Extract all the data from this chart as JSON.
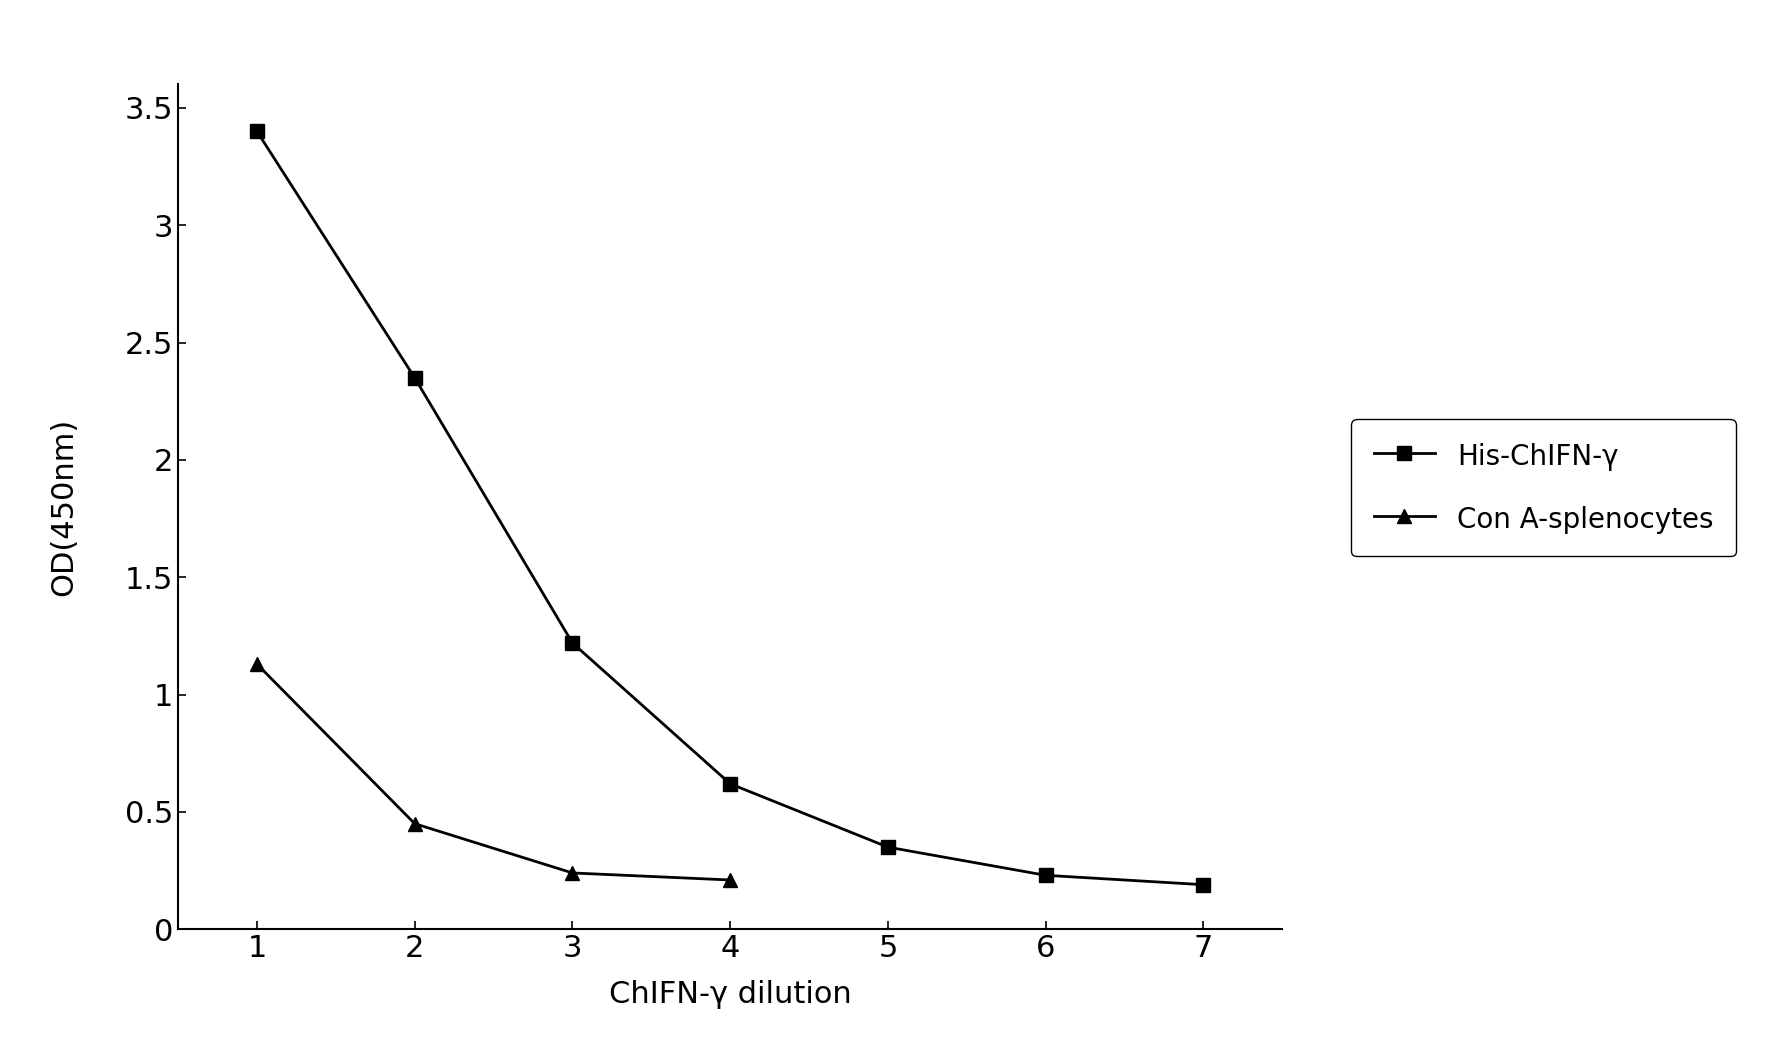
{
  "x": [
    1,
    2,
    3,
    4,
    5,
    6,
    7
  ],
  "his_chifn_y": [
    3.4,
    2.35,
    1.22,
    0.62,
    0.35,
    0.23,
    0.19
  ],
  "con_a_splenocytes": [
    1.13,
    0.45,
    0.24,
    0.21,
    null,
    null,
    null
  ],
  "line_color": "#000000",
  "marker_square": "s",
  "marker_triangle": "^",
  "ylabel": "OD(450nm)",
  "xlabel": "ChIFN-γ dilution",
  "legend_label1": "His-ChIFN-γ",
  "legend_label2": "Con A-splenocytes",
  "ylim_min": 0,
  "ylim_max": 3.6,
  "yticks": [
    0,
    0.5,
    1.0,
    1.5,
    2.0,
    2.5,
    3.0,
    3.5
  ],
  "xticks": [
    1,
    2,
    3,
    4,
    5,
    6,
    7
  ],
  "background_color": "#ffffff",
  "fontsize_ticks": 22,
  "fontsize_label": 22,
  "fontsize_legend": 20,
  "linewidth": 2.0,
  "markersize": 10
}
